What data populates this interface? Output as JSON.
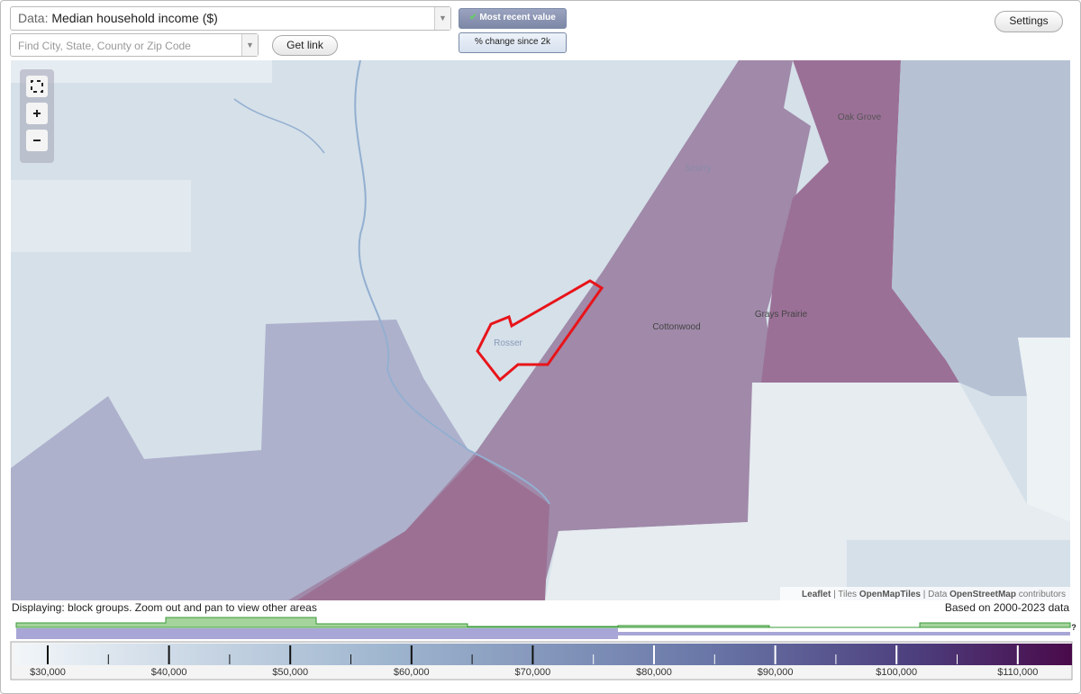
{
  "controls": {
    "data_label": "Data:",
    "data_value": "Median household income ($)",
    "search_placeholder": "Find City, State, County or Zip Code",
    "get_link": "Get link",
    "most_recent": "Most recent value",
    "percent_change": "% change since 2k",
    "settings": "Settings"
  },
  "map": {
    "places": [
      {
        "label": "Oak Grove"
      },
      {
        "label": "Scurry"
      },
      {
        "label": "Grays Prairie"
      },
      {
        "label": "Cottonwood"
      },
      {
        "label": "Rosser"
      }
    ],
    "attribution": {
      "leaflet": "Leaflet",
      "sep1": "|",
      "tiles": "Tiles",
      "openmaptiles": "OpenMapTiles",
      "sep2": "|",
      "data": "Data",
      "osm": "OpenStreetMap",
      "contributors": "contributors"
    }
  },
  "status": {
    "displaying": "Displaying: block groups. Zoom out and pan to view other areas",
    "based_on": "Based on 2000-2023 data",
    "help": "?"
  },
  "legend": {
    "labels": [
      "$30,000",
      "$40,000",
      "$50,000",
      "$60,000",
      "$70,000",
      "$80,000",
      "$90,000",
      "$100,000",
      "$110,000"
    ]
  }
}
